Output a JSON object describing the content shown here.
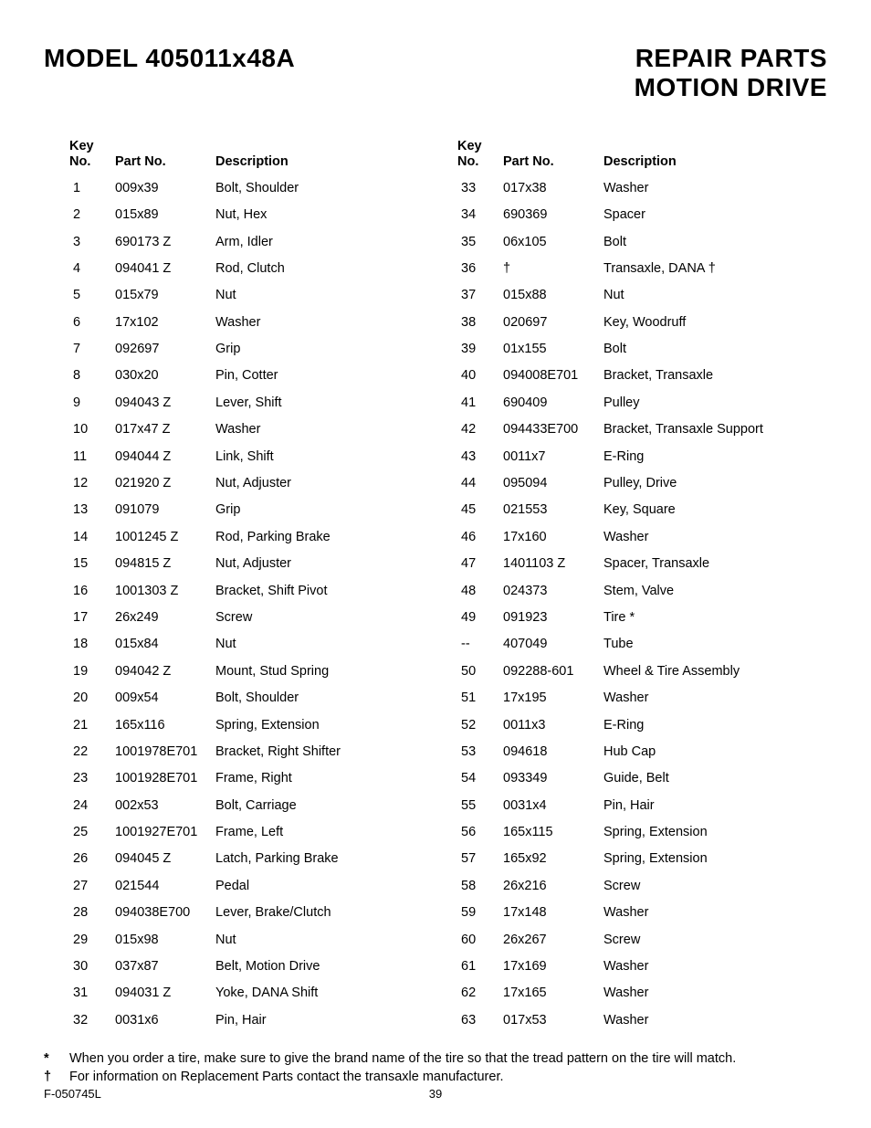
{
  "header": {
    "left_title": "MODEL 405011x48A",
    "right_title_1": "REPAIR PARTS",
    "right_title_2": "MOTION DRIVE"
  },
  "table": {
    "headers": {
      "key_no_line1": "Key",
      "key_no_line2": "No.",
      "part_no": "Part No.",
      "description": "Description"
    },
    "left_rows": [
      {
        "key": "1",
        "part": "009x39",
        "desc": "Bolt, Shoulder"
      },
      {
        "key": "2",
        "part": "015x89",
        "desc": "Nut, Hex"
      },
      {
        "key": "3",
        "part": "690173 Z",
        "desc": "Arm, Idler"
      },
      {
        "key": "4",
        "part": "094041 Z",
        "desc": "Rod, Clutch"
      },
      {
        "key": "5",
        "part": "015x79",
        "desc": "Nut"
      },
      {
        "key": "6",
        "part": "17x102",
        "desc": "Washer"
      },
      {
        "key": "7",
        "part": "092697",
        "desc": "Grip"
      },
      {
        "key": "8",
        "part": "030x20",
        "desc": "Pin, Cotter"
      },
      {
        "key": "9",
        "part": "094043 Z",
        "desc": "Lever, Shift"
      },
      {
        "key": "10",
        "part": "017x47 Z",
        "desc": "Washer"
      },
      {
        "key": "11",
        "part": "094044 Z",
        "desc": "Link, Shift"
      },
      {
        "key": "12",
        "part": "021920 Z",
        "desc": "Nut, Adjuster"
      },
      {
        "key": "13",
        "part": "091079",
        "desc": "Grip"
      },
      {
        "key": "14",
        "part": "1001245 Z",
        "desc": "Rod, Parking Brake"
      },
      {
        "key": "15",
        "part": "094815 Z",
        "desc": "Nut, Adjuster"
      },
      {
        "key": "16",
        "part": "1001303 Z",
        "desc": "Bracket, Shift Pivot"
      },
      {
        "key": "17",
        "part": "26x249",
        "desc": "Screw"
      },
      {
        "key": "18",
        "part": "015x84",
        "desc": "Nut"
      },
      {
        "key": "19",
        "part": "094042 Z",
        "desc": "Mount, Stud Spring"
      },
      {
        "key": "20",
        "part": "009x54",
        "desc": "Bolt, Shoulder"
      },
      {
        "key": "21",
        "part": "165x116",
        "desc": "Spring, Extension"
      },
      {
        "key": "22",
        "part": "1001978E701",
        "desc": "Bracket, Right Shifter"
      },
      {
        "key": "23",
        "part": "1001928E701",
        "desc": "Frame, Right"
      },
      {
        "key": "24",
        "part": "002x53",
        "desc": "Bolt, Carriage"
      },
      {
        "key": "25",
        "part": "1001927E701",
        "desc": "Frame, Left"
      },
      {
        "key": "26",
        "part": "094045 Z",
        "desc": "Latch, Parking Brake"
      },
      {
        "key": "27",
        "part": "021544",
        "desc": "Pedal"
      },
      {
        "key": "28",
        "part": "094038E700",
        "desc": "Lever, Brake/Clutch"
      },
      {
        "key": "29",
        "part": "015x98",
        "desc": "Nut"
      },
      {
        "key": "30",
        "part": "037x87",
        "desc": "Belt, Motion Drive"
      },
      {
        "key": "31",
        "part": "094031 Z",
        "desc": "Yoke, DANA Shift"
      },
      {
        "key": "32",
        "part": "0031x6",
        "desc": "Pin, Hair"
      }
    ],
    "right_rows": [
      {
        "key": "33",
        "part": "017x38",
        "desc": "Washer"
      },
      {
        "key": "34",
        "part": "690369",
        "desc": "Spacer"
      },
      {
        "key": "35",
        "part": "06x105",
        "desc": "Bolt"
      },
      {
        "key": "36",
        "part": "†",
        "desc": "Transaxle, DANA  †"
      },
      {
        "key": "37",
        "part": "015x88",
        "desc": "Nut"
      },
      {
        "key": "38",
        "part": "020697",
        "desc": "Key, Woodruff"
      },
      {
        "key": "39",
        "part": "01x155",
        "desc": "Bolt"
      },
      {
        "key": "40",
        "part": "094008E701",
        "desc": "Bracket, Transaxle"
      },
      {
        "key": "41",
        "part": "690409",
        "desc": "Pulley"
      },
      {
        "key": "42",
        "part": "094433E700",
        "desc": "Bracket, Transaxle Support"
      },
      {
        "key": "43",
        "part": "0011x7",
        "desc": "E-Ring"
      },
      {
        "key": "44",
        "part": "095094",
        "desc": "Pulley, Drive"
      },
      {
        "key": "45",
        "part": "021553",
        "desc": "Key, Square"
      },
      {
        "key": "46",
        "part": "17x160",
        "desc": "Washer"
      },
      {
        "key": "47",
        "part": "1401103 Z",
        "desc": "Spacer, Transaxle"
      },
      {
        "key": "48",
        "part": "024373",
        "desc": "Stem, Valve"
      },
      {
        "key": "49",
        "part": "091923",
        "desc": "Tire *"
      },
      {
        "key": "--",
        "part": "407049",
        "desc": "Tube"
      },
      {
        "key": "50",
        "part": "092288-601",
        "desc": "Wheel & Tire Assembly"
      },
      {
        "key": "51",
        "part": "17x195",
        "desc": "Washer"
      },
      {
        "key": "52",
        "part": "0011x3",
        "desc": "E-Ring"
      },
      {
        "key": "53",
        "part": "094618",
        "desc": "Hub Cap"
      },
      {
        "key": "54",
        "part": "093349",
        "desc": "Guide, Belt"
      },
      {
        "key": "55",
        "part": "0031x4",
        "desc": "Pin, Hair"
      },
      {
        "key": "56",
        "part": "165x115",
        "desc": "Spring, Extension"
      },
      {
        "key": "57",
        "part": "165x92",
        "desc": "Spring, Extension"
      },
      {
        "key": "58",
        "part": "26x216",
        "desc": "Screw"
      },
      {
        "key": "59",
        "part": "17x148",
        "desc": "Washer"
      },
      {
        "key": "60",
        "part": "26x267",
        "desc": "Screw"
      },
      {
        "key": "61",
        "part": "17x169",
        "desc": "Washer"
      },
      {
        "key": "62",
        "part": "17x165",
        "desc": "Washer"
      },
      {
        "key": "63",
        "part": "017x53",
        "desc": "Washer"
      }
    ]
  },
  "footnotes": [
    {
      "symbol": "*",
      "text": "When you order a tire, make sure to give the brand name of the tire so that the tread pattern on the tire will match."
    },
    {
      "symbol": "†",
      "text": "For information on Replacement Parts contact the transaxle manufacturer."
    }
  ],
  "footer": {
    "doc_id": "F-050745L",
    "page_number": "39"
  }
}
